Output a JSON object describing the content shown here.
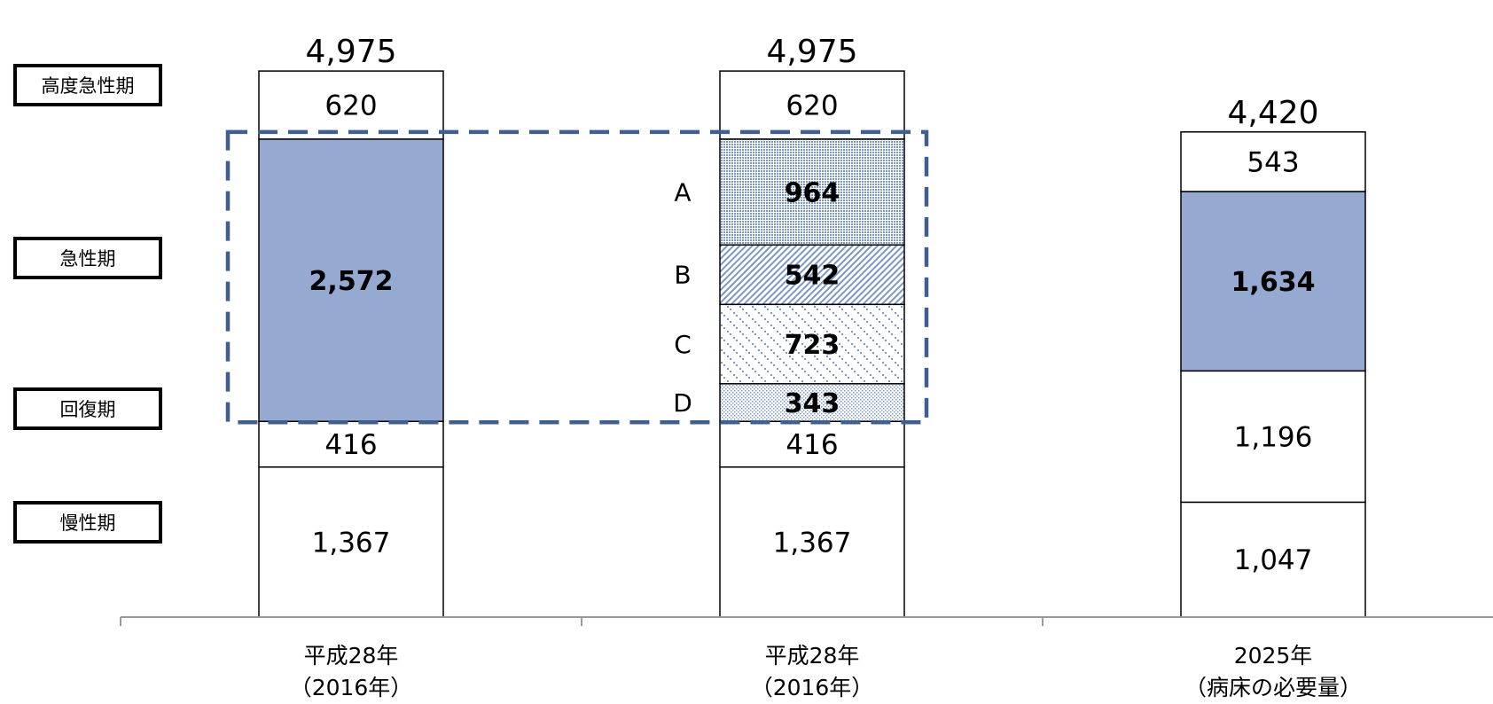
{
  "phases": [
    "高度急性期",
    "急性期",
    "回復期",
    "慢性期"
  ],
  "colors": {
    "acute": "#95A9D1",
    "pattern": "#7D98C4",
    "frame": "#3F5F8F"
  },
  "chart_data": {
    "type": "bar",
    "stacked": true,
    "categories": [
      "平成28年\n（2016年）",
      "平成28年\n（2016年）",
      "2025年\n（病床の必要量）"
    ],
    "totals": [
      "4,975",
      "4,975",
      "4,420"
    ],
    "bars": [
      {
        "segments": [
          {
            "value": 1367,
            "label": "1,367"
          },
          {
            "value": 416,
            "label": "416"
          },
          {
            "value": 2572,
            "label": "2,572",
            "bold": true,
            "fill": "acute"
          },
          {
            "value": 620,
            "label": "620"
          }
        ]
      },
      {
        "segments": [
          {
            "value": 1367,
            "label": "1,367"
          },
          {
            "value": 416,
            "label": "416"
          },
          {
            "value": 343,
            "label": "343",
            "bold": true,
            "fill": "dotsFine",
            "tag": "D"
          },
          {
            "value": 723,
            "label": "723",
            "bold": true,
            "fill": "dotsSparse",
            "tag": "C"
          },
          {
            "value": 542,
            "label": "542",
            "bold": true,
            "fill": "diag",
            "tag": "B"
          },
          {
            "value": 964,
            "label": "964",
            "bold": true,
            "fill": "dotsDense",
            "tag": "A"
          },
          {
            "value": 620,
            "label": "620"
          }
        ]
      },
      {
        "segments": [
          {
            "value": 1047,
            "label": "1,047"
          },
          {
            "value": 1196,
            "label": "1,196"
          },
          {
            "value": 1634,
            "label": "1,634",
            "bold": true,
            "fill": "acute"
          },
          {
            "value": 543,
            "label": "543"
          }
        ]
      }
    ],
    "grid": false,
    "legend": "none"
  }
}
